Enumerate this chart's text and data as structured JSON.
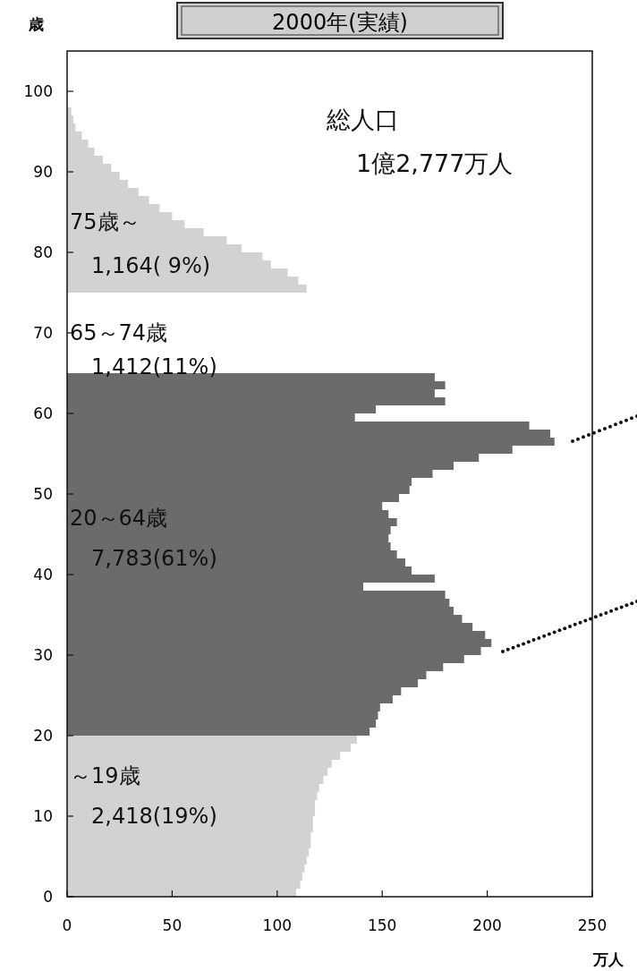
{
  "chart_data": {
    "type": "bar",
    "orientation": "horizontal",
    "title": "2000年(実績)",
    "xlabel": "万人",
    "ylabel": "歳",
    "series": [
      {
        "color": "#d2d2d2",
        "x": [
          0,
          1,
          2,
          3,
          4,
          5,
          6,
          7,
          8,
          9,
          10,
          11,
          12,
          13,
          14,
          15,
          16,
          17,
          18,
          19,
          75,
          76,
          77,
          78,
          79,
          80,
          81,
          82,
          83,
          84,
          85,
          86,
          87,
          88,
          89,
          90,
          91,
          92,
          93,
          94,
          95,
          96,
          97
        ],
        "values": [
          109,
          111,
          112,
          113,
          114,
          115,
          116,
          116,
          117,
          117,
          118,
          118,
          119,
          120,
          122,
          124,
          126,
          130,
          135,
          138,
          114,
          110,
          105,
          97,
          93,
          83,
          76,
          65,
          56,
          50,
          44,
          39,
          34,
          29,
          25,
          21,
          17,
          13,
          10,
          7,
          4,
          3,
          2
        ]
      },
      {
        "color": "#6b6b6b",
        "x": [
          20,
          21,
          22,
          23,
          24,
          25,
          26,
          27,
          28,
          29,
          30,
          31,
          32,
          33,
          34,
          35,
          36,
          37,
          38,
          39,
          40,
          41,
          42,
          43,
          44,
          45,
          46,
          47,
          48,
          49,
          50,
          51,
          52,
          53,
          54,
          55,
          56,
          57,
          58,
          59,
          60,
          61,
          62,
          63,
          64
        ],
        "values": [
          144,
          147,
          148,
          149,
          155,
          159,
          167,
          171,
          179,
          189,
          197,
          202,
          199,
          193,
          188,
          184,
          182,
          180,
          141,
          175,
          164,
          161,
          157,
          154,
          153,
          154,
          157,
          153,
          150,
          158,
          163,
          164,
          174,
          184,
          196,
          212,
          232,
          230,
          220,
          137,
          147,
          180,
          175,
          180,
          175
        ]
      }
    ],
    "xlim": [
      0,
      250
    ],
    "xticks": [
      0,
      50,
      100,
      150,
      200,
      250
    ],
    "ylim": [
      0,
      105
    ],
    "yticks": [
      0,
      10,
      20,
      30,
      40,
      50,
      60,
      70,
      80,
      90,
      100
    ],
    "annotations": [
      "総人口",
      "1億2,777万人",
      "75歳～",
      "1,164( 9%)",
      "65～74歳",
      "1,412(11%)",
      "20～64歳",
      "7,783(61%)",
      "～19歳",
      "2,418(19%)"
    ]
  }
}
